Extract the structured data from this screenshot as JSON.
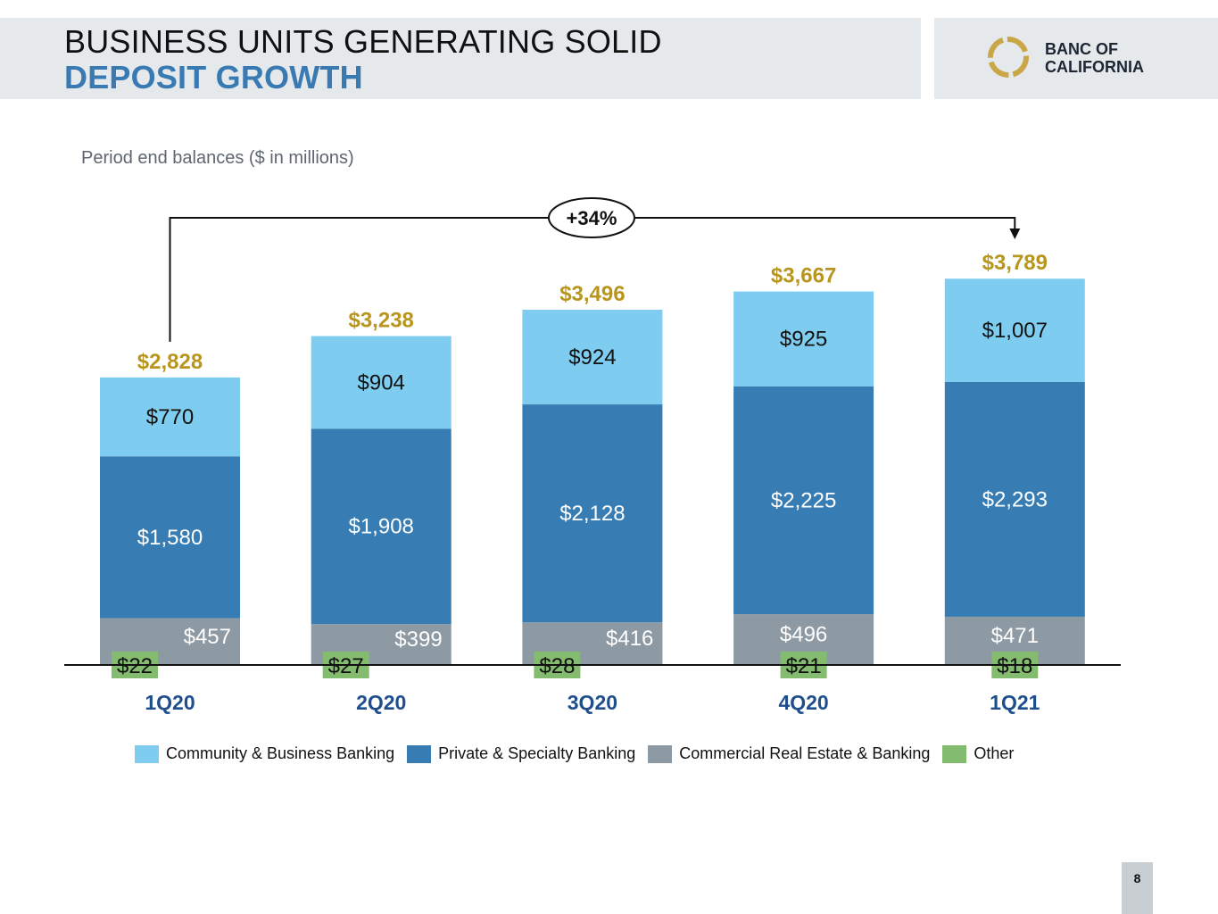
{
  "header": {
    "title_line1": "BUSINESS UNITS GENERATING SOLID",
    "title_line2": "DEPOSIT GROWTH",
    "logo_line1": "BANC OF",
    "logo_line2": "CALIFORNIA"
  },
  "subtitle": "Period end balances ($ in millions)",
  "page_number": "8",
  "colors": {
    "community": "#7ecdf0",
    "private": "#377db3",
    "cre": "#8d9aa3",
    "other": "#83bb6f",
    "total_label": "#b8961e",
    "axis_label": "#1f4e8c"
  },
  "chart_data": {
    "type": "bar",
    "stacked": true,
    "title": "Period end balances ($ in millions)",
    "categories": [
      "1Q20",
      "2Q20",
      "3Q20",
      "4Q20",
      "1Q21"
    ],
    "series": [
      {
        "name": "Other",
        "values": [
          22,
          27,
          28,
          21,
          18
        ],
        "labels": [
          "$22",
          "$27",
          "$28",
          "$21",
          "$18"
        ]
      },
      {
        "name": "Commercial Real Estate & Banking",
        "values": [
          457,
          399,
          416,
          496,
          471
        ],
        "labels": [
          "$457",
          "$399",
          "$416",
          "$496",
          "$471"
        ]
      },
      {
        "name": "Private & Specialty Banking",
        "values": [
          1580,
          1908,
          2128,
          2225,
          2293
        ],
        "labels": [
          "$1,580",
          "$1,908",
          "$2,128",
          "$2,225",
          "$2,293"
        ]
      },
      {
        "name": "Community & Business Banking",
        "values": [
          770,
          904,
          924,
          925,
          1007
        ],
        "labels": [
          "$770",
          "$904",
          "$924",
          "$925",
          "$1,007"
        ]
      }
    ],
    "totals": [
      2828,
      3238,
      3496,
      3667,
      3789
    ],
    "total_labels": [
      "$2,828",
      "$3,238",
      "$3,496",
      "$3,667",
      "$3,789"
    ],
    "growth_annotation": "+34%",
    "legend": [
      "Community & Business Banking",
      "Private & Specialty Banking",
      "Commercial Real Estate & Banking",
      "Other"
    ],
    "legend_position": "bottom",
    "grid": false
  }
}
